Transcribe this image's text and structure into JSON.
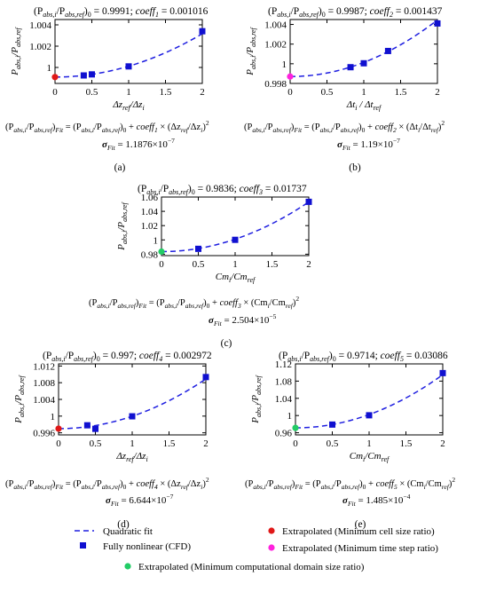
{
  "colors": {
    "fit": "#1f1fe0",
    "cfd": "#1010d0",
    "extrap_cell": "#e01818",
    "extrap_time": "#ff22dd",
    "extrap_domain": "#22cc66"
  },
  "chart_data": [
    {
      "id": "a",
      "type": "scatter",
      "title": "(P_abs,i/P_abs,ref)0 = 0.9991; coeff1 = 0.001016",
      "title_parts": {
        "lhs": "(P",
        "sub1": "abs,i",
        "mid": "/P",
        "sub2": "abs,ref",
        "close": ")",
        "sub0": "0",
        "val": " = 0.9991; ",
        "coef": "coeff",
        "coef_sub": "1",
        "coef_val": " = 0.001016"
      },
      "xlabel": "Δz_ref/Δz_i",
      "xlabel_parts": [
        "Δz",
        "ref",
        "/Δz",
        "i"
      ],
      "ylabel_parts": [
        "P",
        "abs,i",
        "/P",
        "abs,ref"
      ],
      "xlim": [
        0,
        2
      ],
      "ylim": [
        0.9985,
        1.0045
      ],
      "xticks": [
        0,
        0.5,
        1,
        1.5,
        2
      ],
      "xtick_labels": [
        "0",
        "0.5",
        "1",
        "1.5",
        "2"
      ],
      "yticks": [
        1,
        1.002,
        1.004
      ],
      "ytick_labels": [
        "1",
        "1.002",
        "1.004"
      ],
      "fit": {
        "a0": 0.9991,
        "coeff": 0.001016,
        "order": 2
      },
      "cfd_points": [
        {
          "x": 0.39,
          "y": 0.99925
        },
        {
          "x": 0.5,
          "y": 0.99935
        },
        {
          "x": 1.0,
          "y": 1.0001
        },
        {
          "x": 2.0,
          "y": 1.0034
        }
      ],
      "extrapolated": {
        "x": 0,
        "y": 0.9991,
        "kind": "extrap_cell"
      },
      "equation": "(P_abs,i/P_abs,ref)Fit = (P_abs,i/P_abs,ref)0 + coeff1 × (Δz_ref/Δz_i)²",
      "eq_coef": "coeff",
      "eq_coef_sub": "1",
      "eq_frac": [
        "Δz",
        "ref",
        "/Δz",
        "i"
      ],
      "sigma": "= 1.1876×10",
      "sigma_exp": "−7",
      "caption": "(a)"
    },
    {
      "id": "b",
      "type": "scatter",
      "title": "(P_abs,i/P_abs,ref)0 = 0.9987; coeff2 = 0.001437",
      "title_parts": {
        "lhs": "(P",
        "sub1": "abs,i",
        "mid": "/P",
        "sub2": "abs,ref",
        "close": ")",
        "sub0": "0",
        "val": " = 0.9987; ",
        "coef": "coeff",
        "coef_sub": "2",
        "coef_val": " = 0.001437"
      },
      "xlabel": "Δt_i/Δt_ref",
      "xlabel_parts": [
        "Δt",
        "i",
        " / Δt",
        "ref"
      ],
      "ylabel_parts": [
        "P",
        "abs,i",
        "/P",
        "abs,ref"
      ],
      "xlim": [
        0,
        2
      ],
      "ylim": [
        0.998,
        1.0045
      ],
      "xticks": [
        0,
        0.5,
        1,
        1.5,
        2
      ],
      "xtick_labels": [
        "0",
        "0.5",
        "1",
        "1.5",
        "2"
      ],
      "yticks": [
        0.998,
        1,
        1.002,
        1.004
      ],
      "ytick_labels": [
        "0.998",
        "1",
        "1.002",
        "1.004"
      ],
      "fit": {
        "a0": 0.9987,
        "coeff": 0.001437,
        "order": 2
      },
      "cfd_points": [
        {
          "x": 0.82,
          "y": 0.99965
        },
        {
          "x": 1.0,
          "y": 1.00005
        },
        {
          "x": 1.33,
          "y": 1.0013
        },
        {
          "x": 2.0,
          "y": 1.0041
        }
      ],
      "extrapolated": {
        "x": 0,
        "y": 0.9987,
        "kind": "extrap_time"
      },
      "equation": "(P_abs,i/P_abs,ref)Fit = (P_abs,i/P_abs,ref)0 + coeff2 × (Δt_i/Δt_ref)²",
      "eq_coef": "coeff",
      "eq_coef_sub": "2",
      "eq_frac": [
        "Δt",
        "i",
        "/Δt",
        "ref"
      ],
      "sigma": "= 1.19×10",
      "sigma_exp": "−7",
      "caption": "(b)"
    },
    {
      "id": "c",
      "type": "scatter",
      "title": "(P_abs,i/P_abs,ref)0 = 0.9836; coeff3 = 0.01737",
      "title_parts": {
        "lhs": "(P",
        "sub1": "abs,i",
        "mid": "/P",
        "sub2": "abs,ref",
        "close": ")",
        "sub0": "0",
        "val": " = 0.9836; ",
        "coef": "coeff",
        "coef_sub": "3",
        "coef_val": " = 0.01737"
      },
      "xlabel": "Cm_i/Cm_ref",
      "xlabel_parts": [
        "Cm",
        "i",
        "/Cm",
        "ref"
      ],
      "ylabel_parts": [
        "P",
        "abs,i",
        "/P",
        "abs,ref"
      ],
      "xlim": [
        0,
        2
      ],
      "ylim": [
        0.978,
        1.06
      ],
      "xticks": [
        0,
        0.5,
        1,
        1.5,
        2
      ],
      "xtick_labels": [
        "0",
        "0.5",
        "1",
        "1.5",
        "2"
      ],
      "yticks": [
        0.98,
        1,
        1.02,
        1.04,
        1.06
      ],
      "ytick_labels": [
        "0.98",
        "1",
        "1.02",
        "1.04",
        "1.06"
      ],
      "fit": {
        "a0": 0.9836,
        "coeff": 0.01737,
        "order": 2
      },
      "cfd_points": [
        {
          "x": 0.5,
          "y": 0.9875
        },
        {
          "x": 1.0,
          "y": 1.0001
        },
        {
          "x": 2.0,
          "y": 1.0533
        }
      ],
      "extrapolated": {
        "x": 0,
        "y": 0.9836,
        "kind": "extrap_domain"
      },
      "equation": "(P_abs,i/P_abs,ref)Fit = (P_abs,i/P_abs,ref)0 + coeff3 × (Cm_i/Cm_ref)²",
      "eq_coef": "coeff",
      "eq_coef_sub": "3",
      "eq_frac": [
        "Cm",
        "i",
        "/Cm",
        "ref"
      ],
      "sigma": "= 2.504×10",
      "sigma_exp": "−5",
      "caption": "(c)"
    },
    {
      "id": "d",
      "type": "scatter",
      "title": "(P_abs,i/P_abs,ref)0 = 0.997; coeff4 = 0.002972",
      "title_parts": {
        "lhs": "(P",
        "sub1": "abs,i",
        "mid": "/P",
        "sub2": "abs,ref",
        "close": ")",
        "sub0": "0",
        "val": " = 0.997; ",
        "coef": "coeff",
        "coef_sub": "4",
        "coef_val": " = 0.002972"
      },
      "xlabel": "Δz_ref/Δz_i",
      "xlabel_parts": [
        "Δz",
        "ref",
        "/Δz",
        "i"
      ],
      "ylabel_parts": [
        "P",
        "abs,i",
        "/P",
        "abs,ref"
      ],
      "xlim": [
        0,
        2
      ],
      "ylim": [
        0.9955,
        1.0125
      ],
      "xticks": [
        0,
        0.5,
        1,
        1.5,
        2
      ],
      "xtick_labels": [
        "0",
        "0.5",
        "1",
        "1.5",
        "2"
      ],
      "yticks": [
        0.996,
        1,
        1.004,
        1.008,
        1.012
      ],
      "ytick_labels": [
        "0.996",
        "1",
        "1.004",
        "1.008",
        "1.012"
      ],
      "fit": {
        "a0": 0.997,
        "coeff": 0.002972,
        "order": 2
      },
      "cfd_points": [
        {
          "x": 0.39,
          "y": 0.9978
        },
        {
          "x": 0.5,
          "y": 0.99695
        },
        {
          "x": 1.0,
          "y": 0.99995
        },
        {
          "x": 2.0,
          "y": 1.00935
        }
      ],
      "extrapolated": {
        "x": 0,
        "y": 0.997,
        "kind": "extrap_cell"
      },
      "equation": "(P_abs,i/P_abs,ref)Fit = (P_abs,i/P_abs,ref)0 + coeff4 × (Δz_ref/Δz_i)²",
      "eq_coef": "coeff",
      "eq_coef_sub": "4",
      "eq_frac": [
        "Δz",
        "ref",
        "/Δz",
        "i"
      ],
      "sigma": "= 6.644×10",
      "sigma_exp": "−7",
      "caption": "(d)"
    },
    {
      "id": "e",
      "type": "scatter",
      "title": "(P_abs,i/P_abs,ref)0 = 0.9714; coeff5 = 0.03086",
      "title_parts": {
        "lhs": "(P",
        "sub1": "abs,i",
        "mid": "/P",
        "sub2": "abs,ref",
        "close": ")",
        "sub0": "0",
        "val": " = 0.9714; ",
        "coef": "coeff",
        "coef_sub": "5",
        "coef_val": " = 0.03086"
      },
      "xlabel": "Cm_i/Cm_ref",
      "xlabel_parts": [
        "Cm",
        "i",
        "/Cm",
        "ref"
      ],
      "ylabel_parts": [
        "P",
        "abs,i",
        "/P",
        "abs,ref"
      ],
      "xlim": [
        0,
        2
      ],
      "ylim": [
        0.955,
        1.12
      ],
      "xticks": [
        0,
        0.5,
        1,
        1.5,
        2
      ],
      "xtick_labels": [
        "0",
        "0.5",
        "1",
        "1.5",
        "2"
      ],
      "yticks": [
        0.96,
        1,
        1.04,
        1.08,
        1.12
      ],
      "ytick_labels": [
        "0.96",
        "1",
        "1.04",
        "1.08",
        "1.12"
      ],
      "fit": {
        "a0": 0.9714,
        "coeff": 0.03086,
        "order": 2
      },
      "cfd_points": [
        {
          "x": 0.5,
          "y": 0.979
        },
        {
          "x": 1.0,
          "y": 1.0006
        },
        {
          "x": 2.0,
          "y": 1.0986
        }
      ],
      "extrapolated": {
        "x": 0,
        "y": 0.9714,
        "kind": "extrap_domain"
      },
      "equation": "(P_abs,i/P_abs,ref)Fit = (P_abs,i/P_abs,ref)0 + coeff5 × (Cm_i/Cm_ref)²",
      "eq_coef": "coeff",
      "eq_coef_sub": "5",
      "eq_frac": [
        "Cm",
        "i",
        "/Cm",
        "ref"
      ],
      "sigma": "= 1.485×10",
      "sigma_exp": "−4",
      "caption": "(e)"
    }
  ],
  "legend": {
    "fit": "Quadratic fit",
    "cfd": "Fully nonlinear (CFD)",
    "extrap_cell": "Extrapolated (Minimum cell size ratio)",
    "extrap_time": "Extrapolated (Minimum time step ratio)",
    "extrap_domain": "Extrapolated (Minimum computational domain size ratio)"
  }
}
